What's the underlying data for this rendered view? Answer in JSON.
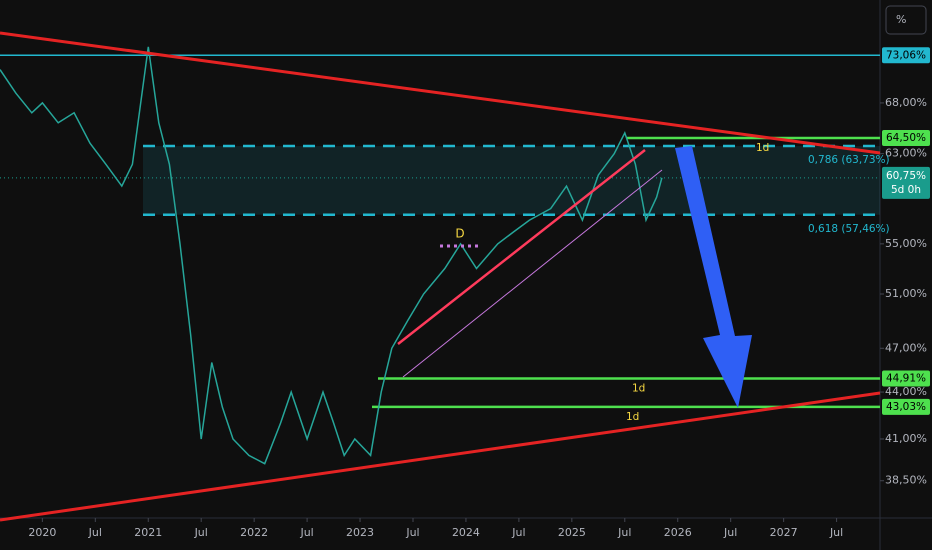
{
  "chart_data": {
    "type": "line",
    "scale_button": "%",
    "log_scale": true,
    "color": "#26a69a",
    "x": [
      2019.6,
      2019.75,
      2019.9,
      2020.0,
      2020.15,
      2020.3,
      2020.45,
      2020.6,
      2020.75,
      2020.85,
      2021.0,
      2021.1,
      2021.2,
      2021.3,
      2021.4,
      2021.5,
      2021.6,
      2021.7,
      2021.8,
      2021.95,
      2022.1,
      2022.25,
      2022.35,
      2022.5,
      2022.65,
      2022.75,
      2022.85,
      2022.95,
      2023.1,
      2023.2,
      2023.3,
      2023.45,
      2023.6,
      2023.8,
      2023.95,
      2024.1,
      2024.3,
      2024.45,
      2024.6,
      2024.8,
      2024.95,
      2025.1,
      2025.25,
      2025.4,
      2025.5,
      2025.6,
      2025.7,
      2025.8,
      2025.85
    ],
    "values": [
      71.5,
      69,
      67,
      68,
      66,
      67,
      64,
      62,
      60,
      62,
      74,
      66,
      62,
      55,
      48,
      41,
      46,
      43,
      41,
      40,
      39.5,
      42,
      44,
      41,
      44,
      42,
      40,
      41,
      40,
      44,
      47,
      49,
      51,
      53,
      55,
      53,
      55,
      56,
      57,
      58,
      60,
      57,
      61,
      63,
      65,
      62,
      57,
      59,
      60.75
    ],
    "xlim": [
      2019.6,
      2027.91
    ],
    "xticks": [
      {
        "value": 2020,
        "label": "2020"
      },
      {
        "value": 2020.5,
        "label": "Jul"
      },
      {
        "value": 2021,
        "label": "2021"
      },
      {
        "value": 2021.5,
        "label": "Jul"
      },
      {
        "value": 2022,
        "label": "2022"
      },
      {
        "value": 2022.5,
        "label": "Jul"
      },
      {
        "value": 2023,
        "label": "2023"
      },
      {
        "value": 2023.5,
        "label": "Jul"
      },
      {
        "value": 2024,
        "label": "2024"
      },
      {
        "value": 2024.5,
        "label": "Jul"
      },
      {
        "value": 2025,
        "label": "2025"
      },
      {
        "value": 2025.5,
        "label": "Jul"
      },
      {
        "value": 2026,
        "label": "2026"
      },
      {
        "value": 2026.5,
        "label": "Jul"
      },
      {
        "value": 2027,
        "label": "2027"
      },
      {
        "value": 2027.5,
        "label": "Jul"
      }
    ],
    "ylim": [
      36.4,
      79.4
    ],
    "yticks": [
      {
        "value": 68,
        "label": "68,00%"
      },
      {
        "value": 63,
        "label": "63,00%"
      },
      {
        "value": 55,
        "label": "55,00%"
      },
      {
        "value": 51,
        "label": "51,00%"
      },
      {
        "value": 47,
        "label": "47,00%"
      },
      {
        "value": 44,
        "label": "44,00%"
      },
      {
        "value": 41,
        "label": "41,00%"
      },
      {
        "value": 38.5,
        "label": "38,50%"
      }
    ],
    "levels": [
      {
        "value": 73.06,
        "label": "73,06%",
        "color": "#22b8cf"
      },
      {
        "value": 64.5,
        "label": "64,50%",
        "color": "#4ee04e",
        "note": "1d"
      },
      {
        "value": 63.73,
        "note": "0,786 (63,73%)",
        "color": "#22b8cf"
      },
      {
        "value": 57.46,
        "note": "0,618 (57,46%)",
        "color": "#22b8cf"
      },
      {
        "value": 44.91,
        "label": "44,91%",
        "color": "#4ee04e",
        "note": "1d"
      },
      {
        "value": 43.03,
        "label": "43,03%",
        "color": "#4ee04e",
        "note": "1d"
      }
    ],
    "price_tag": {
      "value": 60.75,
      "label": "60,75%",
      "countdown": "5d 0h",
      "color": "#1a9c8c"
    },
    "pattern_label": "D"
  }
}
